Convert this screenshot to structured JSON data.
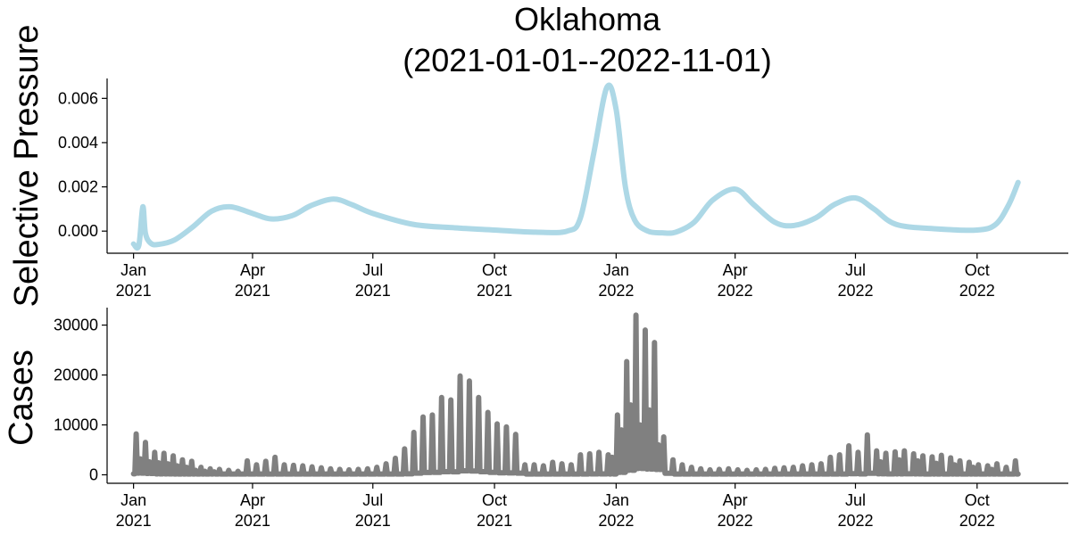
{
  "title_lines": [
    "Oklahoma",
    "(2021-01-01--2022-11-01)"
  ],
  "x_ticks": [
    {
      "date": "2021-01-01",
      "line1": "Jan",
      "line2": "2021"
    },
    {
      "date": "2021-04-01",
      "line1": "Apr",
      "line2": "2021"
    },
    {
      "date": "2021-07-01",
      "line1": "Jul",
      "line2": "2021"
    },
    {
      "date": "2021-10-01",
      "line1": "Oct",
      "line2": "2021"
    },
    {
      "date": "2022-01-01",
      "line1": "Jan",
      "line2": "2022"
    },
    {
      "date": "2022-04-01",
      "line1": "Apr",
      "line2": "2022"
    },
    {
      "date": "2022-07-01",
      "line1": "Jul",
      "line2": "2022"
    },
    {
      "date": "2022-10-01",
      "line1": "Oct",
      "line2": "2022"
    }
  ],
  "chart_data": [
    {
      "type": "line",
      "ylabel": "Selective Pressure",
      "xlim": [
        "2020-12-12",
        "2022-12-09"
      ],
      "ylim": [
        -0.001,
        0.0069
      ],
      "y_ticks": [
        "0.000",
        "0.002",
        "0.004",
        "0.006"
      ],
      "y_tick_values": [
        0.0,
        0.002,
        0.004,
        0.006
      ],
      "series": [
        {
          "color": "#add8e6",
          "points": [
            [
              "2021-01-01",
              -0.00058
            ],
            [
              "2021-01-05",
              -0.00065
            ],
            [
              "2021-01-08",
              0.0011
            ],
            [
              "2021-01-10",
              -0.0001
            ],
            [
              "2021-01-14",
              -0.00055
            ],
            [
              "2021-01-20",
              -0.0006
            ],
            [
              "2021-02-01",
              -0.0004
            ],
            [
              "2021-02-15",
              0.0002
            ],
            [
              "2021-03-01",
              0.0009
            ],
            [
              "2021-03-15",
              0.0011
            ],
            [
              "2021-04-01",
              0.0008
            ],
            [
              "2021-04-15",
              0.00055
            ],
            [
              "2021-05-01",
              0.0007
            ],
            [
              "2021-05-15",
              0.00115
            ],
            [
              "2021-06-01",
              0.00145
            ],
            [
              "2021-06-15",
              0.0012
            ],
            [
              "2021-07-01",
              0.0008
            ],
            [
              "2021-08-01",
              0.0003
            ],
            [
              "2021-09-01",
              0.00015
            ],
            [
              "2021-10-01",
              5e-05
            ],
            [
              "2021-11-01",
              -5e-05
            ],
            [
              "2021-11-25",
              0.0
            ],
            [
              "2021-12-05",
              0.0006
            ],
            [
              "2021-12-15",
              0.0035
            ],
            [
              "2021-12-25",
              0.0065
            ],
            [
              "2022-01-01",
              0.0055
            ],
            [
              "2022-01-08",
              0.002
            ],
            [
              "2022-01-15",
              0.0005
            ],
            [
              "2022-01-25",
              0.0
            ],
            [
              "2022-02-05",
              -8e-05
            ],
            [
              "2022-02-15",
              -5e-05
            ],
            [
              "2022-03-01",
              0.0004
            ],
            [
              "2022-03-15",
              0.0014
            ],
            [
              "2022-04-01",
              0.0019
            ],
            [
              "2022-04-15",
              0.0012
            ],
            [
              "2022-05-01",
              0.0004
            ],
            [
              "2022-05-15",
              0.00025
            ],
            [
              "2022-06-01",
              0.0006
            ],
            [
              "2022-06-15",
              0.0012
            ],
            [
              "2022-07-01",
              0.0015
            ],
            [
              "2022-07-15",
              0.001
            ],
            [
              "2022-08-01",
              0.0003
            ],
            [
              "2022-09-01",
              0.0001
            ],
            [
              "2022-10-01",
              5e-05
            ],
            [
              "2022-10-15",
              0.0003
            ],
            [
              "2022-10-25",
              0.0012
            ],
            [
              "2022-11-01",
              0.0022
            ]
          ]
        }
      ]
    },
    {
      "type": "line",
      "ylabel": "Cases",
      "xlim": [
        "2020-12-12",
        "2022-12-09"
      ],
      "ylim": [
        -1700,
        33500
      ],
      "y_ticks": [
        "0",
        "10000",
        "20000",
        "30000"
      ],
      "y_tick_values": [
        0,
        10000,
        20000,
        30000
      ],
      "series": [
        {
          "color": "#808080",
          "weekly_peaks": [
            [
              "2021-01-03",
              8200
            ],
            [
              "2021-01-10",
              6500
            ],
            [
              "2021-01-17",
              4500
            ],
            [
              "2021-01-24",
              4300
            ],
            [
              "2021-01-31",
              3800
            ],
            [
              "2021-02-07",
              3000
            ],
            [
              "2021-02-14",
              2700
            ],
            [
              "2021-02-21",
              1500
            ],
            [
              "2021-02-28",
              1200
            ],
            [
              "2021-03-07",
              1100
            ],
            [
              "2021-03-14",
              900
            ],
            [
              "2021-03-21",
              700
            ],
            [
              "2021-03-28",
              2800
            ],
            [
              "2021-04-04",
              2000
            ],
            [
              "2021-04-11",
              2700
            ],
            [
              "2021-04-18",
              3500
            ],
            [
              "2021-04-25",
              2000
            ],
            [
              "2021-05-02",
              1900
            ],
            [
              "2021-05-09",
              1800
            ],
            [
              "2021-05-16",
              1600
            ],
            [
              "2021-05-23",
              1400
            ],
            [
              "2021-05-30",
              1200
            ],
            [
              "2021-06-06",
              1100
            ],
            [
              "2021-06-13",
              1000
            ],
            [
              "2021-06-20",
              1100
            ],
            [
              "2021-06-27",
              1200
            ],
            [
              "2021-07-04",
              1500
            ],
            [
              "2021-07-11",
              2200
            ],
            [
              "2021-07-18",
              3300
            ],
            [
              "2021-07-25",
              5200
            ],
            [
              "2021-08-01",
              8500
            ],
            [
              "2021-08-08",
              11600
            ],
            [
              "2021-08-15",
              12000
            ],
            [
              "2021-08-22",
              15500
            ],
            [
              "2021-08-29",
              15000
            ],
            [
              "2021-09-05",
              19800
            ],
            [
              "2021-09-12",
              18800
            ],
            [
              "2021-09-19",
              15500
            ],
            [
              "2021-09-26",
              12500
            ],
            [
              "2021-10-03",
              10200
            ],
            [
              "2021-10-10",
              9600
            ],
            [
              "2021-10-17",
              8100
            ],
            [
              "2021-10-24",
              2000
            ],
            [
              "2021-10-31",
              2000
            ],
            [
              "2021-11-07",
              1800
            ],
            [
              "2021-11-14",
              2500
            ],
            [
              "2021-11-21",
              2200
            ],
            [
              "2021-11-28",
              2000
            ],
            [
              "2021-12-05",
              4000
            ],
            [
              "2021-12-12",
              4200
            ],
            [
              "2021-12-19",
              4500
            ],
            [
              "2021-12-26",
              4000
            ],
            [
              "2022-01-02",
              12000
            ],
            [
              "2022-01-09",
              22700
            ],
            [
              "2022-01-16",
              32000
            ],
            [
              "2022-01-23",
              29000
            ],
            [
              "2022-01-30",
              26500
            ],
            [
              "2022-02-06",
              7600
            ],
            [
              "2022-02-13",
              3000
            ],
            [
              "2022-02-20",
              2000
            ],
            [
              "2022-02-27",
              1500
            ],
            [
              "2022-03-06",
              1200
            ],
            [
              "2022-03-13",
              1000
            ],
            [
              "2022-03-20",
              1100
            ],
            [
              "2022-03-27",
              1200
            ],
            [
              "2022-04-03",
              1000
            ],
            [
              "2022-04-10",
              900
            ],
            [
              "2022-04-17",
              1000
            ],
            [
              "2022-04-24",
              1100
            ],
            [
              "2022-05-01",
              1300
            ],
            [
              "2022-05-08",
              1400
            ],
            [
              "2022-05-15",
              1500
            ],
            [
              "2022-05-22",
              1800
            ],
            [
              "2022-05-29",
              2000
            ],
            [
              "2022-06-05",
              2200
            ],
            [
              "2022-06-12",
              3500
            ],
            [
              "2022-06-19",
              4000
            ],
            [
              "2022-06-26",
              5800
            ],
            [
              "2022-07-03",
              4500
            ],
            [
              "2022-07-10",
              8000
            ],
            [
              "2022-07-17",
              4800
            ],
            [
              "2022-07-24",
              4300
            ],
            [
              "2022-07-31",
              4600
            ],
            [
              "2022-08-07",
              4800
            ],
            [
              "2022-08-14",
              4200
            ],
            [
              "2022-08-21",
              3800
            ],
            [
              "2022-08-28",
              3600
            ],
            [
              "2022-09-04",
              3900
            ],
            [
              "2022-09-11",
              3400
            ],
            [
              "2022-09-18",
              2800
            ],
            [
              "2022-09-25",
              2500
            ],
            [
              "2022-10-02",
              2000
            ],
            [
              "2022-10-09",
              1800
            ],
            [
              "2022-10-16",
              2200
            ],
            [
              "2022-10-23",
              1500
            ],
            [
              "2022-10-30",
              2800
            ]
          ],
          "midweek_values": [
            [
              "2021-01-06",
              3200
            ],
            [
              "2021-01-13",
              2600
            ],
            [
              "2021-01-20",
              2400
            ],
            [
              "2021-01-27",
              2200
            ],
            [
              "2021-02-03",
              1800
            ],
            [
              "2021-02-10",
              1500
            ],
            [
              "2021-02-17",
              900
            ],
            [
              "2021-02-24",
              700
            ],
            [
              "2021-03-03",
              600
            ],
            [
              "2021-12-29",
              3500
            ],
            [
              "2022-01-05",
              9000
            ],
            [
              "2022-01-12",
              14000
            ],
            [
              "2022-01-19",
              10000
            ],
            [
              "2022-01-26",
              13000
            ],
            [
              "2022-02-02",
              6000
            ],
            [
              "2022-07-20",
              2600
            ],
            [
              "2022-08-03",
              3000
            ],
            [
              "2022-08-17",
              2800
            ],
            [
              "2022-08-31",
              2300
            ],
            [
              "2022-09-14",
              2000
            ],
            [
              "2022-09-28",
              1500
            ],
            [
              "2022-10-12",
              1100
            ]
          ]
        }
      ]
    }
  ]
}
